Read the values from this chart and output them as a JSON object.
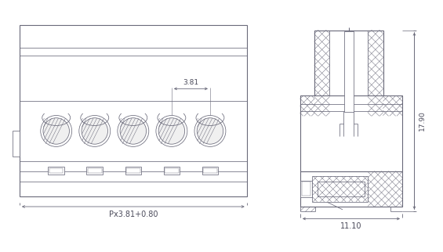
{
  "line_color": "#6a6a7a",
  "dim_color": "#4a4a5a",
  "hatch_lw": 0.35,
  "n_contacts": 5,
  "pitch": 3.81,
  "label_pitch": "3.81",
  "label_total": "Px3.81+0.80",
  "label_width": "11.10",
  "label_height": "17.90",
  "lw_main": 0.8,
  "lw_thin": 0.55
}
